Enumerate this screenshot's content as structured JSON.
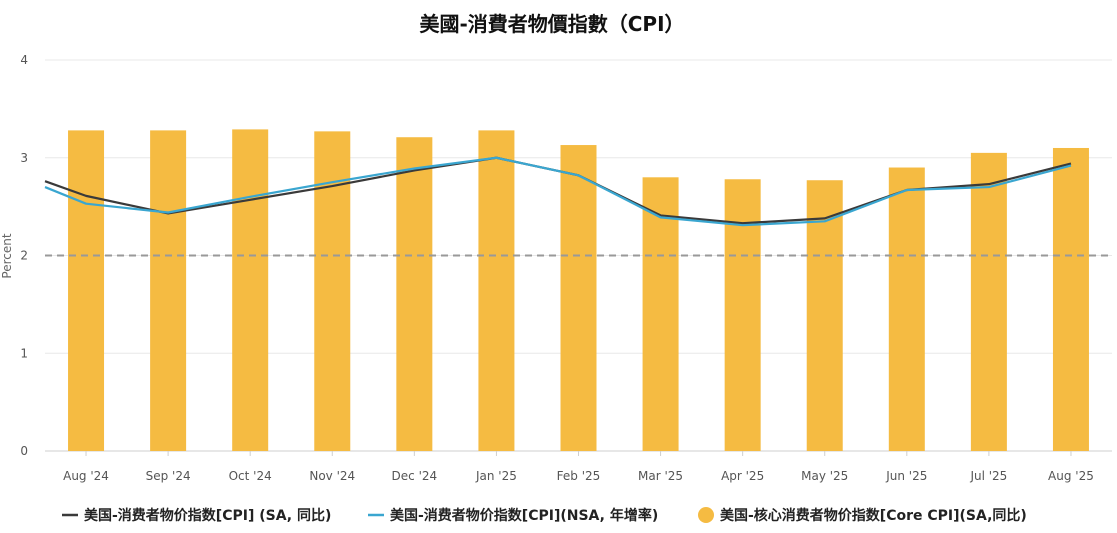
{
  "chart_data": {
    "type": "bar",
    "title": "美國-消費者物價指數（CPI）",
    "ylabel": "Percent",
    "xlabel": "",
    "ylim": [
      0,
      4
    ],
    "yticks": [
      0,
      1,
      2,
      3,
      4
    ],
    "reference_line": 2,
    "grid": true,
    "legend_position": "bottom",
    "categories": [
      "Aug '24",
      "Sep '24",
      "Oct '24",
      "Nov '24",
      "Dec '24",
      "Jan '25",
      "Feb '25",
      "Mar '25",
      "Apr '25",
      "May '25",
      "Jun '25",
      "Jul '25",
      "Aug '25"
    ],
    "series": [
      {
        "name": "美国-消费者物价指数[CPI] (SA, 同比)",
        "type": "line",
        "color": "#3a3a3a",
        "values": [
          2.61,
          2.43,
          2.57,
          2.71,
          2.87,
          3.0,
          2.82,
          2.41,
          2.33,
          2.38,
          2.67,
          2.73,
          2.94
        ],
        "x_start": 2.76
      },
      {
        "name": "美国-消费者物价指数[CPI](NSA, 年增率)",
        "type": "line",
        "color": "#3aa6d0",
        "values": [
          2.53,
          2.44,
          2.6,
          2.75,
          2.89,
          3.0,
          2.82,
          2.39,
          2.31,
          2.35,
          2.67,
          2.7,
          2.92
        ],
        "x_start": 2.7
      },
      {
        "name": "美国-核心消费者物价指数[Core CPI](SA,同比)",
        "type": "bar",
        "color": "#f5bb42",
        "values": [
          3.28,
          3.28,
          3.29,
          3.27,
          3.21,
          3.28,
          3.13,
          2.8,
          2.78,
          2.77,
          2.9,
          3.05,
          3.1
        ]
      }
    ]
  }
}
